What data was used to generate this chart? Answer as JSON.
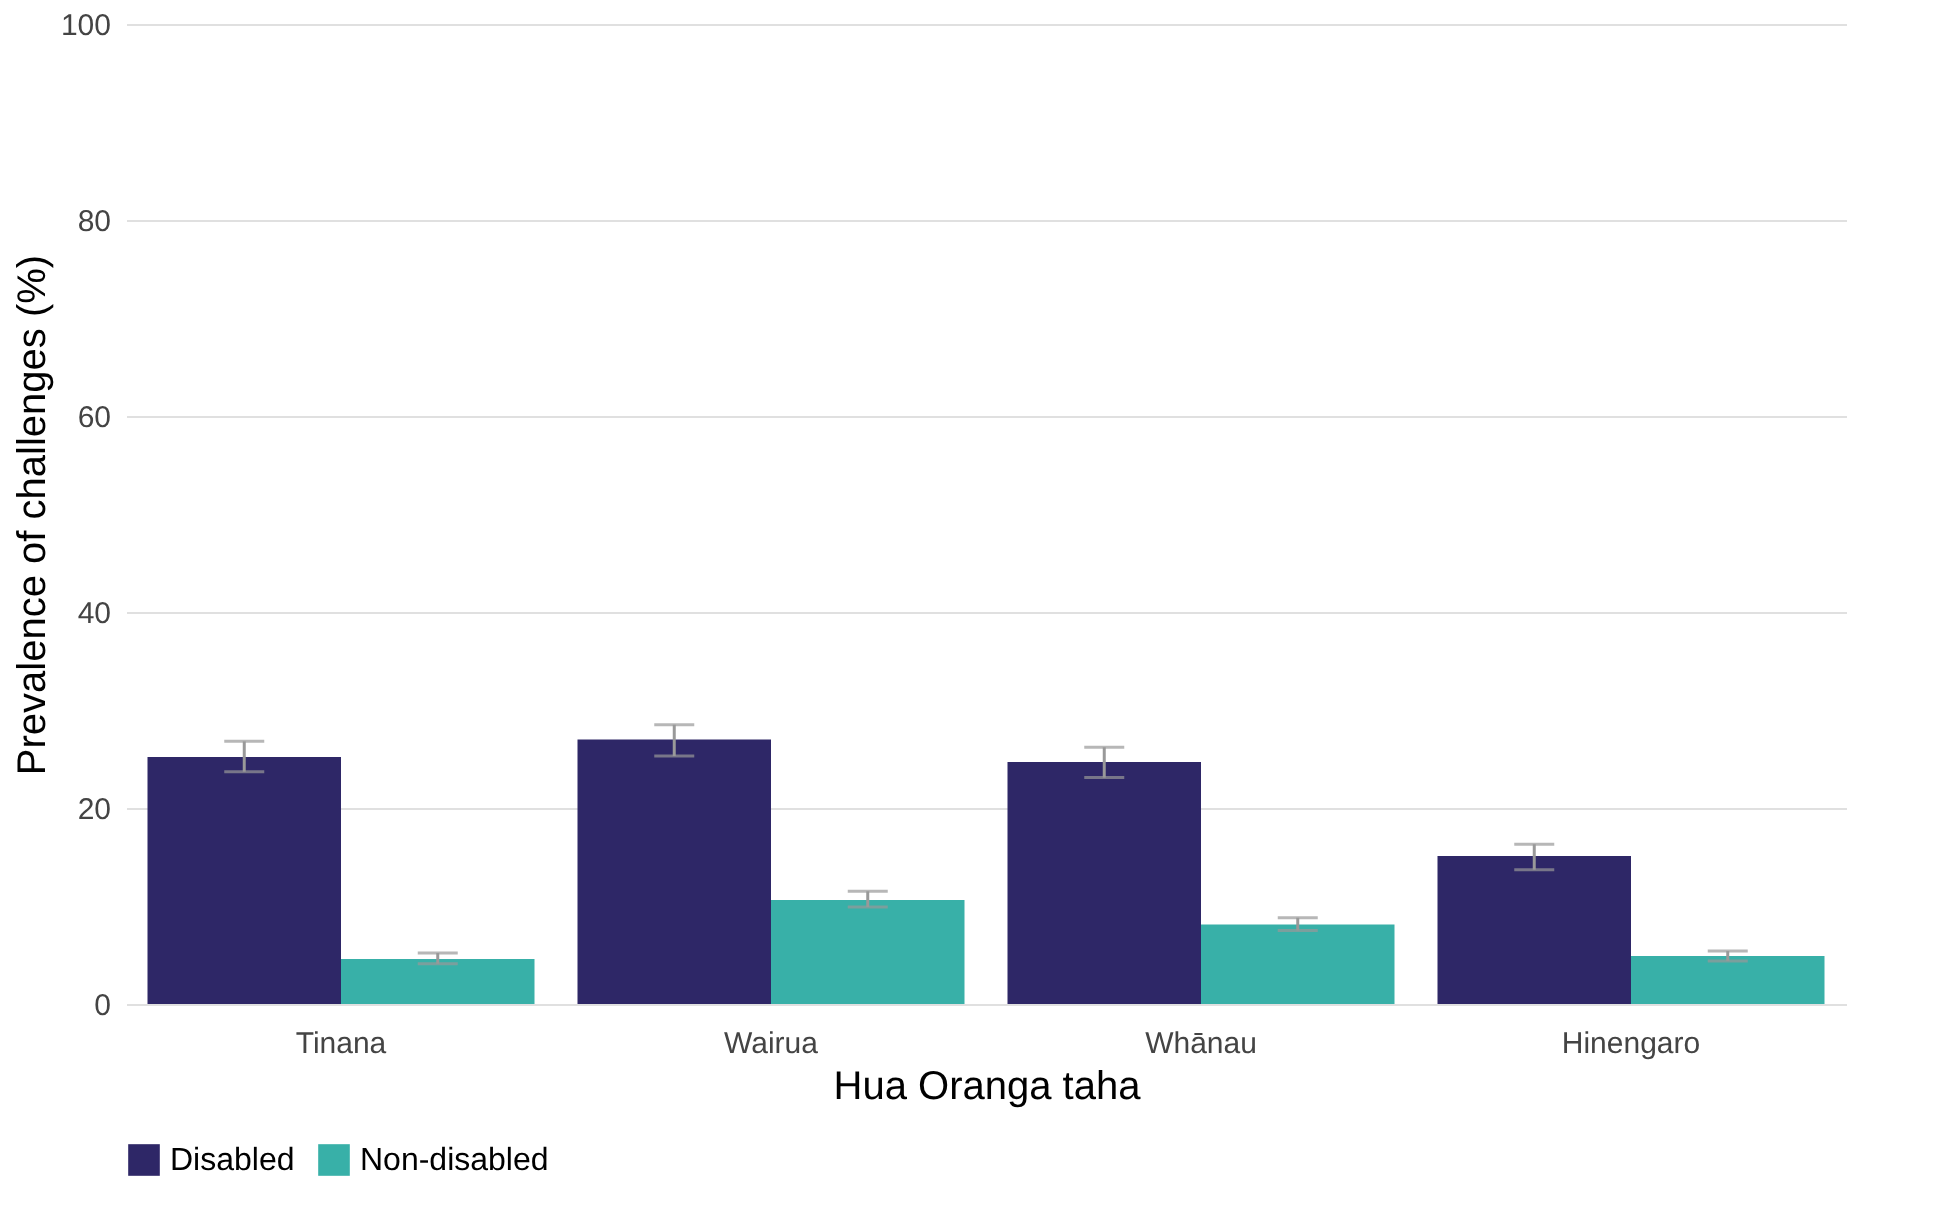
{
  "chart_data": {
    "type": "bar",
    "xlabel": "Hua Oranga taha",
    "ylabel": "Prevalence of challenges (%)",
    "categories": [
      "Tinana",
      "Wairua",
      "Whānau",
      "Hinengaro"
    ],
    "series": [
      {
        "name": "Disabled",
        "color": "#2e2767",
        "values": [
          25.2,
          27.0,
          24.7,
          15.1
        ],
        "errors": [
          [
            23.7,
            26.8
          ],
          [
            25.3,
            28.5
          ],
          [
            23.1,
            26.2
          ],
          [
            13.7,
            16.3
          ]
        ]
      },
      {
        "name": "Non-disabled",
        "color": "#38b0a8",
        "values": [
          4.6,
          10.6,
          8.1,
          4.9
        ],
        "errors": [
          [
            4.1,
            5.2
          ],
          [
            9.9,
            11.5
          ],
          [
            7.5,
            8.8
          ],
          [
            4.4,
            5.4
          ]
        ]
      }
    ],
    "ylim": [
      0,
      100
    ],
    "yticks": [
      0,
      20,
      40,
      60,
      80,
      100
    ],
    "grid": "y",
    "legend": "bottom"
  }
}
